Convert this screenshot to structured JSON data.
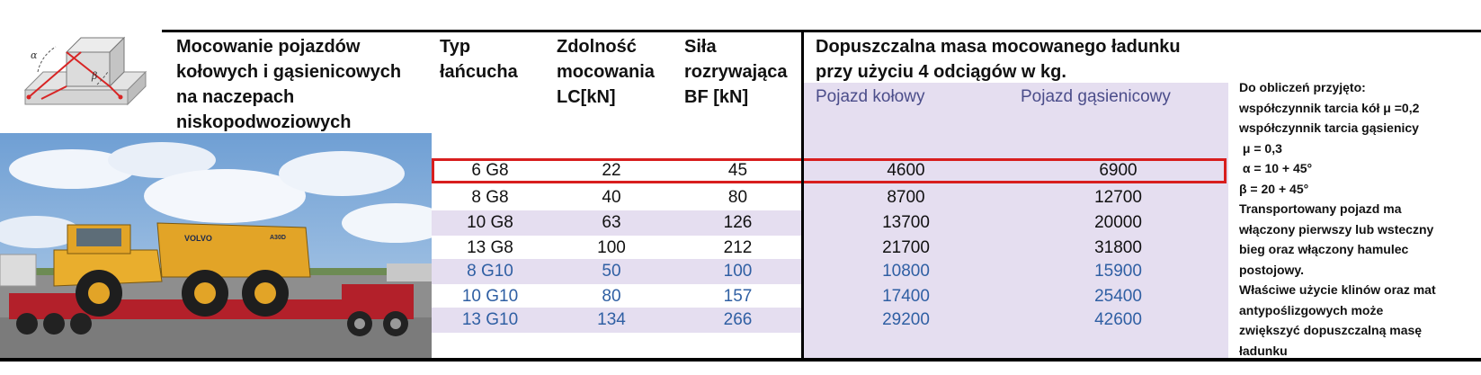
{
  "header": {
    "title_lines": [
      "Mocowanie pojazdów",
      "kołowych i gąsienicowych",
      "na naczepach",
      "niskopodwoziowych"
    ],
    "typ_lines": [
      "Typ",
      "łańcucha"
    ],
    "lc_lines": [
      "Zdolność",
      "mocowania",
      "LC[kN]"
    ],
    "bf_lines": [
      "Siła",
      "rozrywająca",
      "BF [kN]"
    ],
    "mass_lines": [
      "Dopuszczalna masa mocowanego ładunku",
      "przy użyciu 4 odciągów w kg."
    ],
    "sub_kolowy": "Pojazd kołowy",
    "sub_gasienicowy": "Pojazd gąsienicowy"
  },
  "diagram": {
    "alpha": "α",
    "beta": "β"
  },
  "photo": {
    "brand": "VOLVO",
    "model": "A30D"
  },
  "rows": [
    {
      "typ": "6 G8",
      "lc": "22",
      "bf": "45",
      "kolowy": "4600",
      "gasienicowy": "6900"
    },
    {
      "typ": "8 G8",
      "lc": "40",
      "bf": "80",
      "kolowy": "8700",
      "gasienicowy": "12700"
    },
    {
      "typ": "10 G8",
      "lc": "63",
      "bf": "126",
      "kolowy": "13700",
      "gasienicowy": "20000"
    },
    {
      "typ": "13 G8",
      "lc": "100",
      "bf": "212",
      "kolowy": "21700",
      "gasienicowy": "31800"
    },
    {
      "typ": "8 G10",
      "lc": "50",
      "bf": "100",
      "kolowy": "10800",
      "gasienicowy": "15900"
    },
    {
      "typ": "10 G10",
      "lc": "80",
      "bf": "157",
      "kolowy": "17400",
      "gasienicowy": "25400"
    },
    {
      "typ": "13 G10",
      "lc": "134",
      "bf": "266",
      "kolowy": "29200",
      "gasienicowy": "42600"
    }
  ],
  "notes": [
    "Do obliczeń przyjęto:",
    "współczynnik tarcia kół μ =0,2",
    "współczynnik tarcia gąsienicy",
    " μ = 0,3",
    " α = 10 + 45°",
    "β = 20 + 45°",
    "Transportowany pojazd ma",
    "włączony pierwszy lub wsteczny",
    "bieg oraz włączony hamulec",
    "postojowy.",
    "Właściwe użycie klinów oraz mat",
    "antypoślizgowych może",
    "zwiększyć dopuszczalną masę",
    "ładunku"
  ],
  "colors": {
    "highlight": "#d81e1e",
    "shade": "#e5def0",
    "blue_text": "#2f5fa3",
    "subheader": "#4b4d8a"
  }
}
